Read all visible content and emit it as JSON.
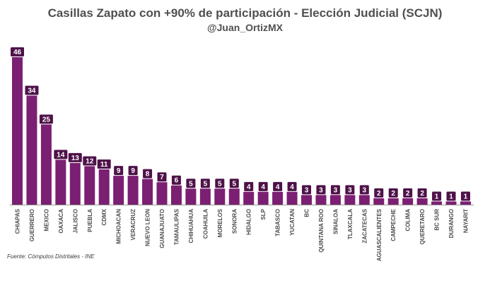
{
  "chart_data": {
    "type": "bar",
    "title": "Casillas Zapato con +90% de participación - Elección Judicial (SCJN)",
    "subtitle": "@Juan_OrtizMX",
    "source": "Fuente: Cómputos Distritales - INE",
    "xlabel": "",
    "ylabel": "",
    "ylim": [
      0,
      46
    ],
    "grid": false,
    "legend": "none",
    "bar_color": "#7b1f72",
    "label_box_color": "#4e1249",
    "label_text_color": "#ffffff",
    "categories": [
      "CHIAPAS",
      "GUERRERO",
      "MEXICO",
      "OAXACA",
      "JALISCO",
      "PUEBLA",
      "CDMX",
      "MICHOACAN",
      "VERACRUZ",
      "NUEVO LEON",
      "GUANAJUATO",
      "TAMAULIPAS",
      "CHIHUAHUA",
      "COAHUILA",
      "MORELOS",
      "SONORA",
      "HIDALGO",
      "SLP",
      "TABASCO",
      "YUCATAN",
      "BC",
      "QUINTANA ROO",
      "SINALOA",
      "TLAXCALA",
      "ZACATECAS",
      "AGUASCALIENTES",
      "CAMPECHE",
      "COLIMA",
      "QUERETARO",
      "BC SUR",
      "DURANGO",
      "NAYARIT"
    ],
    "values": [
      46,
      34,
      25,
      14,
      13,
      12,
      11,
      9,
      9,
      8,
      7,
      6,
      5,
      5,
      5,
      5,
      4,
      4,
      4,
      4,
      3,
      3,
      3,
      3,
      3,
      2,
      2,
      2,
      2,
      1,
      1,
      1
    ]
  }
}
